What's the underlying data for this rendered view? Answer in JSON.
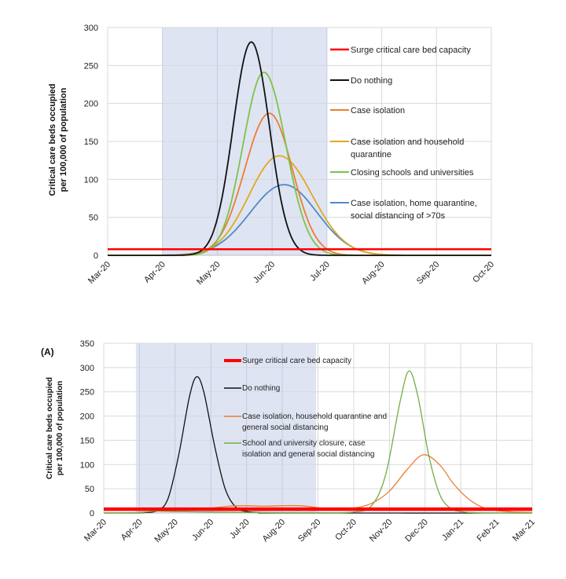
{
  "chart_data": [
    {
      "type": "line",
      "title": "",
      "panel_label": "",
      "xlabel": "",
      "ylabel": "Critical care beds occupied per 100,000 of population",
      "ylabel_lines": [
        "Critical care beds occupied",
        "per 100,000 of population"
      ],
      "x_tick_labels": [
        "Mar-20",
        "Apr-20",
        "May-20",
        "Jun-20",
        "Jul-20",
        "Aug-20",
        "Sep-20",
        "Oct-20"
      ],
      "x_range_months": [
        0,
        7
      ],
      "ylim": [
        0,
        300
      ],
      "y_ticks": [
        0,
        50,
        100,
        150,
        200,
        250,
        300
      ],
      "grid": true,
      "shaded_interval_months": [
        1.0,
        4.0
      ],
      "shaded_color": "#dfe4f3",
      "legend_position": "right",
      "capacity": {
        "name": "Surge critical care bed capacity",
        "value": 8,
        "color": "#ff0000"
      },
      "series": [
        {
          "name": "Do nothing",
          "color": "#111111",
          "peak_month": 2.62,
          "peak": 281,
          "width_left": 0.33,
          "width_right": 0.33
        },
        {
          "name": "Case isolation",
          "color": "#ed7d31",
          "peak_month": 2.95,
          "peak": 187,
          "width_left": 0.45,
          "width_right": 0.42
        },
        {
          "name": "Case isolation and household quarantine",
          "color": "#e0a91f",
          "peak_month": 3.13,
          "peak": 131,
          "width_left": 0.55,
          "width_right": 0.6
        },
        {
          "name": "Closing schools and universities",
          "color": "#7dc34a",
          "peak_month": 2.85,
          "peak": 241,
          "width_left": 0.38,
          "width_right": 0.4
        },
        {
          "name": "Case isolation, home quarantine, social distancing of >70s",
          "color": "#4e8ac8",
          "peak_month": 3.22,
          "peak": 93,
          "width_left": 0.62,
          "width_right": 0.6
        }
      ]
    },
    {
      "type": "line",
      "title": "",
      "panel_label": "(A)",
      "xlabel": "",
      "ylabel": "Critical care beds occupied per 100,000 of population",
      "ylabel_lines": [
        "Critical care beds occupied",
        "per 100,000 of population"
      ],
      "x_tick_labels": [
        "Mar-20",
        "Apr-20",
        "May-20",
        "Jun-20",
        "Jul-20",
        "Aug-20",
        "Sep-20",
        "Oct-20",
        "Nov-20",
        "Dec-20",
        "Jan-21",
        "Feb-21",
        "Mar-21"
      ],
      "x_range_months": [
        0,
        12
      ],
      "ylim": [
        0,
        350
      ],
      "y_ticks": [
        0,
        50,
        100,
        150,
        200,
        250,
        300,
        350
      ],
      "grid": true,
      "shaded_interval_months": [
        0.9,
        5.95
      ],
      "shaded_color": "#dfe4f3",
      "legend_position": "top-center",
      "capacity": {
        "name": "Surge critical care bed capacity",
        "value": 8,
        "color": "#ff0000"
      },
      "series": [
        {
          "name": "Do nothing",
          "color": "#111111",
          "points": [
            [
              0,
              0
            ],
            [
              1,
              0.5
            ],
            [
              1.5,
              5
            ],
            [
              1.8,
              30
            ],
            [
              2.1,
              120
            ],
            [
              2.4,
              240
            ],
            [
              2.6,
              281
            ],
            [
              2.8,
              250
            ],
            [
              3.1,
              140
            ],
            [
              3.4,
              50
            ],
            [
              3.7,
              12
            ],
            [
              4,
              3
            ],
            [
              4.5,
              0.5
            ],
            [
              5,
              0
            ],
            [
              12,
              0
            ]
          ]
        },
        {
          "name": "Case isolation, household quarantine and general social distancing",
          "color": "#ed7d31",
          "points": [
            [
              0,
              0
            ],
            [
              1,
              1
            ],
            [
              1.5,
              5
            ],
            [
              2,
              8
            ],
            [
              2.5,
              8
            ],
            [
              3,
              10
            ],
            [
              3.5,
              14
            ],
            [
              4,
              15
            ],
            [
              4.5,
              14
            ],
            [
              5,
              15
            ],
            [
              5.5,
              15
            ],
            [
              5.9,
              12
            ],
            [
              6.3,
              8
            ],
            [
              7,
              10
            ],
            [
              7.5,
              20
            ],
            [
              8,
              45
            ],
            [
              8.5,
              90
            ],
            [
              8.95,
              120
            ],
            [
              9.4,
              100
            ],
            [
              9.8,
              60
            ],
            [
              10.2,
              30
            ],
            [
              10.6,
              12
            ],
            [
              11,
              5
            ],
            [
              11.5,
              2
            ],
            [
              12,
              1
            ]
          ]
        },
        {
          "name": "School and university closure, case isolation and general social distancing",
          "color": "#70ad47",
          "points": [
            [
              0,
              0
            ],
            [
              1,
              1
            ],
            [
              1.5,
              4
            ],
            [
              2,
              3
            ],
            [
              3,
              2
            ],
            [
              4,
              1
            ],
            [
              5,
              0.5
            ],
            [
              6,
              0.5
            ],
            [
              7,
              2
            ],
            [
              7.5,
              15
            ],
            [
              7.9,
              80
            ],
            [
              8.3,
              230
            ],
            [
              8.55,
              293
            ],
            [
              8.8,
              240
            ],
            [
              9.1,
              120
            ],
            [
              9.4,
              40
            ],
            [
              9.7,
              10
            ],
            [
              10,
              3
            ],
            [
              10.5,
              0.5
            ],
            [
              12,
              0
            ]
          ]
        }
      ]
    }
  ]
}
